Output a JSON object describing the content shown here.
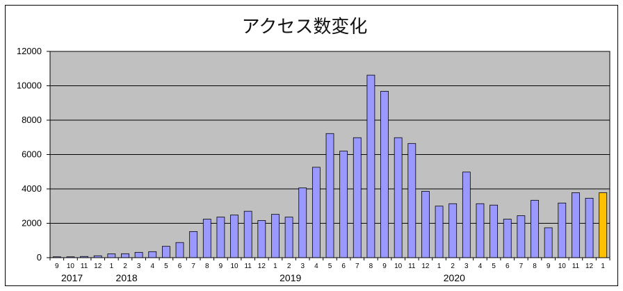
{
  "chart_data": {
    "type": "bar",
    "title": "アクセス数変化",
    "xlabel": "",
    "ylabel": "",
    "ylim": [
      0,
      12000
    ],
    "yticks": [
      0,
      2000,
      4000,
      6000,
      8000,
      10000,
      12000
    ],
    "grid": true,
    "legend": "none",
    "categories": [
      "9",
      "10",
      "11",
      "12",
      "1",
      "2",
      "3",
      "4",
      "5",
      "6",
      "7",
      "8",
      "9",
      "10",
      "11",
      "12",
      "1",
      "2",
      "3",
      "4",
      "5",
      "6",
      "7",
      "8",
      "9",
      "10",
      "11",
      "12",
      "1",
      "2",
      "3",
      "4",
      "5",
      "6",
      "7",
      "8",
      "9",
      "10",
      "11",
      "12",
      "1"
    ],
    "years": [
      {
        "label": "2017",
        "start_index": 0
      },
      {
        "label": "2018",
        "start_index": 4
      },
      {
        "label": "2019",
        "start_index": 16
      },
      {
        "label": "2020",
        "start_index": 28
      }
    ],
    "values": [
      50,
      50,
      70,
      110,
      220,
      230,
      310,
      350,
      660,
      880,
      1520,
      2240,
      2360,
      2480,
      2700,
      2160,
      2520,
      2360,
      4060,
      5260,
      7220,
      6200,
      6980,
      10620,
      9680,
      6980,
      6640,
      3860,
      3000,
      3140,
      4980,
      3140,
      3060,
      2240,
      2440,
      3340,
      1740,
      3180,
      3780,
      3460,
      3780
    ],
    "highlight_index": 40,
    "colors": {
      "bar": "#9999ff",
      "highlight": "#ffc000",
      "plot_bg": "#c0c0c0",
      "grid": "#000000",
      "border": "#000000"
    }
  }
}
